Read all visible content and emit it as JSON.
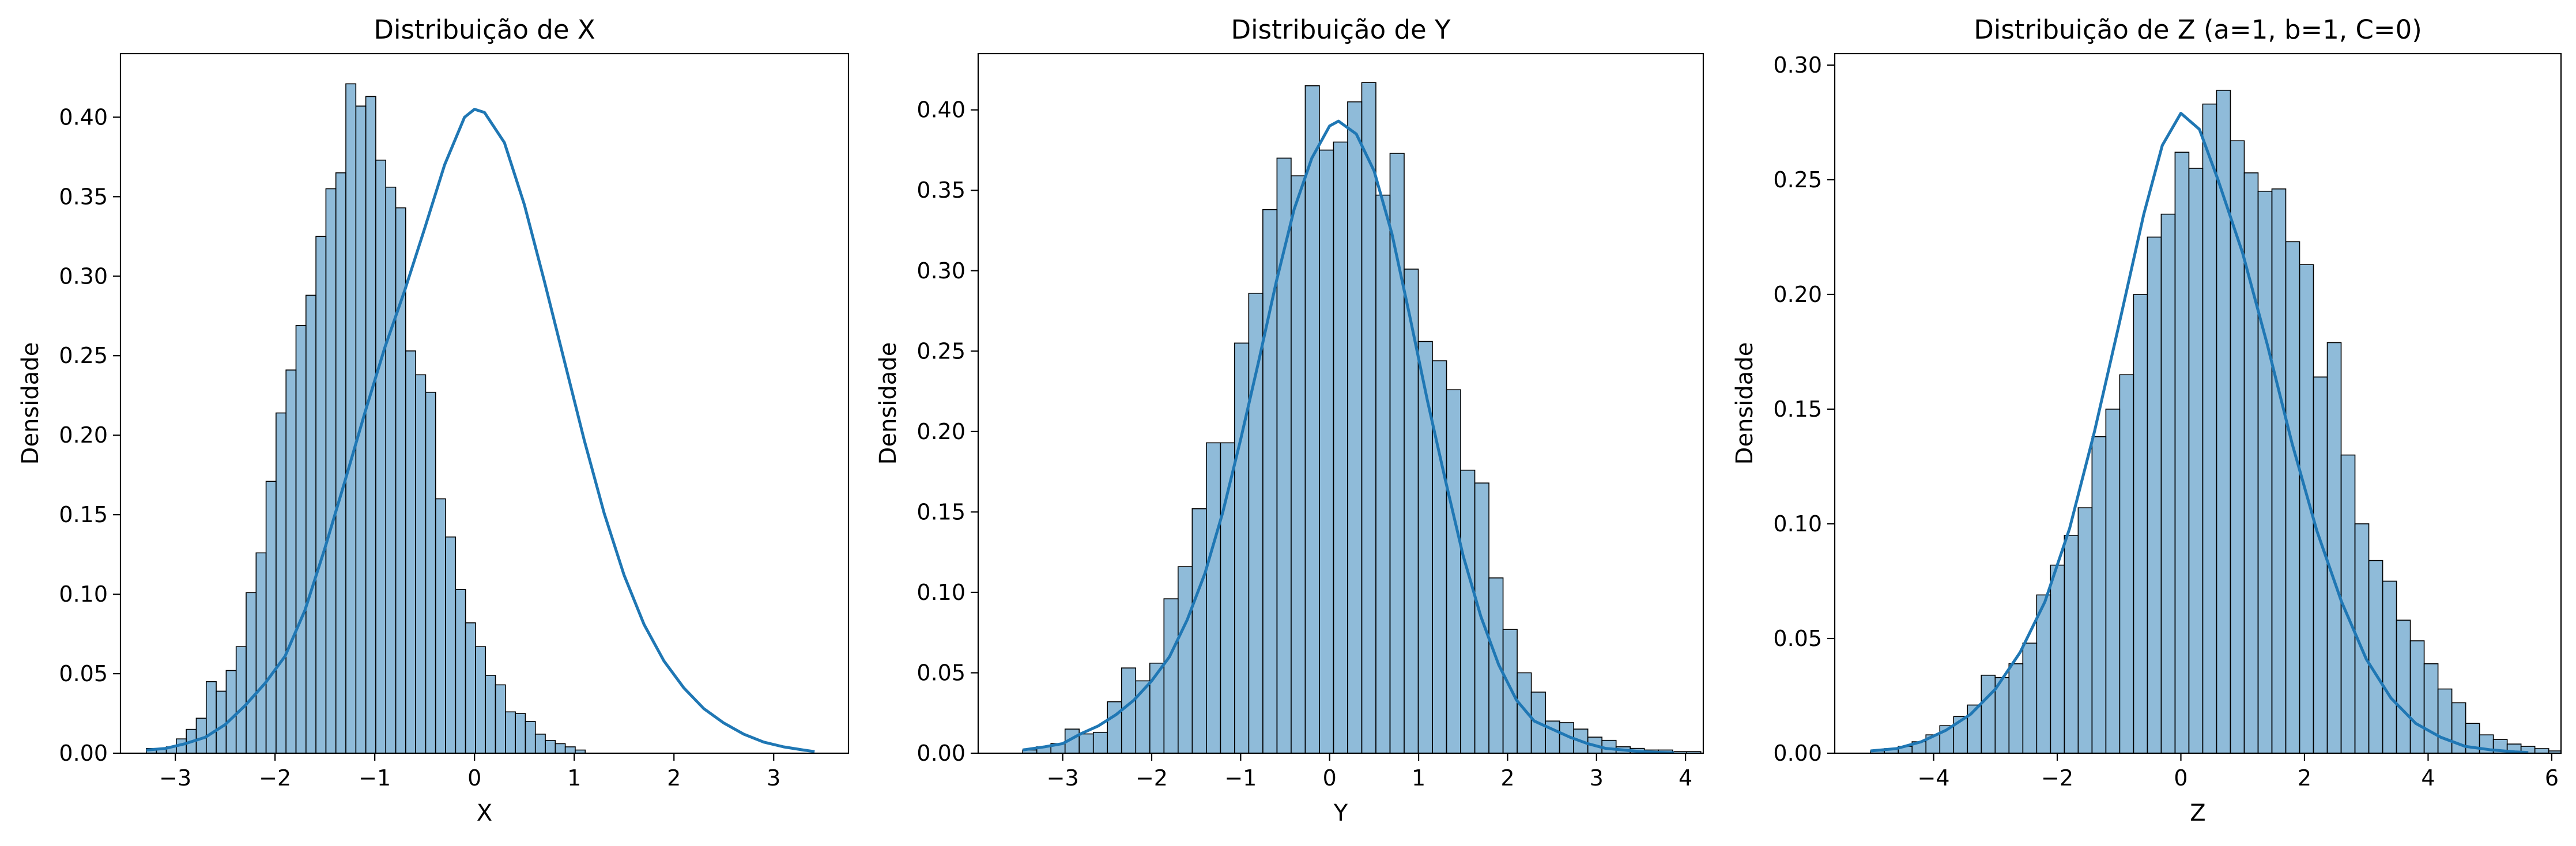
{
  "style": {
    "bar_fill": "#1f77b4",
    "bar_fill_opacity": 0.5,
    "bar_edge": "#000000",
    "kde_line": "#1f77b4",
    "background": "#ffffff"
  },
  "chart_data": [
    {
      "type": "bar",
      "subtype": "histogram-with-kde",
      "title": "Distribuição de X",
      "xlabel": "X",
      "ylabel": "Densidade",
      "xlim": [
        -3.55,
        3.75
      ],
      "ylim": [
        0,
        0.44
      ],
      "xticks": [
        -3,
        -2,
        -1,
        0,
        1,
        2,
        3
      ],
      "xtick_labels": [
        "−3",
        "−2",
        "−1",
        "0",
        "1",
        "2",
        "3"
      ],
      "yticks": [
        0,
        0.05,
        0.1,
        0.15,
        0.2,
        0.25,
        0.3,
        0.35,
        0.4
      ],
      "ytick_labels": [
        "0.00",
        "0.05",
        "0.10",
        "0.15",
        "0.20",
        "0.25",
        "0.30",
        "0.35",
        "0.40"
      ],
      "grid": false,
      "bin_start": -3.29,
      "bin_width": 0.1,
      "values": [
        0.003,
        0.003,
        0.004,
        0.009,
        0.015,
        0.022,
        0.045,
        0.039,
        0.052,
        0.067,
        0.101,
        0.126,
        0.171,
        0.214,
        0.241,
        0.269,
        0.288,
        0.325,
        0.355,
        0.365,
        0.421,
        0.407,
        0.413,
        0.373,
        0.356,
        0.343,
        0.253,
        0.238,
        0.227,
        0.16,
        0.136,
        0.103,
        0.082,
        0.067,
        0.049,
        0.043,
        0.026,
        0.025,
        0.02,
        0.012,
        0.008,
        0.006,
        0.004,
        0.002
      ],
      "kde": {
        "x": [
          -3.29,
          -3.1,
          -2.9,
          -2.7,
          -2.5,
          -2.3,
          -2.1,
          -1.9,
          -1.7,
          -1.5,
          -1.3,
          -1.1,
          -0.9,
          -0.7,
          -0.5,
          -0.3,
          -0.1,
          0.0,
          0.1,
          0.3,
          0.5,
          0.7,
          0.9,
          1.1,
          1.3,
          1.5,
          1.7,
          1.9,
          2.1,
          2.3,
          2.5,
          2.7,
          2.9,
          3.1,
          3.3,
          3.41
        ],
        "y": [
          0.002,
          0.003,
          0.006,
          0.01,
          0.018,
          0.03,
          0.044,
          0.061,
          0.09,
          0.129,
          0.171,
          0.214,
          0.255,
          0.291,
          0.33,
          0.37,
          0.4,
          0.405,
          0.403,
          0.384,
          0.345,
          0.297,
          0.247,
          0.197,
          0.151,
          0.112,
          0.081,
          0.058,
          0.041,
          0.028,
          0.019,
          0.012,
          0.007,
          0.004,
          0.002,
          0.001
        ]
      }
    },
    {
      "type": "bar",
      "subtype": "histogram-with-kde",
      "title": "Distribuição de Y",
      "xlabel": "Y",
      "ylabel": "Densidade",
      "xlim": [
        -3.95,
        4.2
      ],
      "ylim": [
        0,
        0.435
      ],
      "xticks": [
        -3,
        -2,
        -1,
        0,
        1,
        2,
        3,
        4
      ],
      "xtick_labels": [
        "−3",
        "−2",
        "−1",
        "0",
        "1",
        "2",
        "3",
        "4"
      ],
      "yticks": [
        0,
        0.05,
        0.1,
        0.15,
        0.2,
        0.25,
        0.3,
        0.35,
        0.4
      ],
      "ytick_labels": [
        "0.00",
        "0.05",
        "0.10",
        "0.15",
        "0.20",
        "0.25",
        "0.30",
        "0.35",
        "0.40"
      ],
      "grid": false,
      "bin_start": -3.45,
      "bin_width": 0.1588,
      "values": [
        0.002,
        0.004,
        0.006,
        0.015,
        0.012,
        0.013,
        0.032,
        0.053,
        0.045,
        0.056,
        0.096,
        0.116,
        0.152,
        0.193,
        0.193,
        0.255,
        0.286,
        0.338,
        0.37,
        0.359,
        0.415,
        0.375,
        0.38,
        0.405,
        0.417,
        0.347,
        0.373,
        0.301,
        0.256,
        0.244,
        0.226,
        0.176,
        0.168,
        0.109,
        0.077,
        0.05,
        0.038,
        0.02,
        0.019,
        0.015,
        0.01,
        0.008,
        0.004,
        0.003,
        0.002,
        0.002,
        0.001,
        0.001
      ],
      "kde": {
        "x": [
          -3.45,
          -3.2,
          -3.0,
          -2.8,
          -2.6,
          -2.4,
          -2.2,
          -2.0,
          -1.8,
          -1.6,
          -1.4,
          -1.2,
          -1.0,
          -0.8,
          -0.6,
          -0.4,
          -0.2,
          0.0,
          0.1,
          0.3,
          0.5,
          0.7,
          0.9,
          1.1,
          1.3,
          1.5,
          1.7,
          1.9,
          2.1,
          2.3,
          2.5,
          2.7,
          2.9,
          3.1,
          3.3,
          3.5,
          3.7,
          3.87
        ],
        "y": [
          0.002,
          0.004,
          0.006,
          0.012,
          0.017,
          0.024,
          0.033,
          0.045,
          0.06,
          0.083,
          0.112,
          0.15,
          0.195,
          0.243,
          0.293,
          0.338,
          0.37,
          0.39,
          0.393,
          0.385,
          0.362,
          0.323,
          0.272,
          0.219,
          0.17,
          0.123,
          0.085,
          0.055,
          0.033,
          0.02,
          0.015,
          0.01,
          0.006,
          0.003,
          0.002,
          0.001,
          0.0005,
          0.0002
        ]
      }
    },
    {
      "type": "bar",
      "subtype": "histogram-with-kde",
      "title": "Distribuição de Z (a=1, b=1, C=0)",
      "xlabel": "Z",
      "ylabel": "Densidade",
      "xlim": [
        -5.6,
        6.15
      ],
      "ylim": [
        0,
        0.305
      ],
      "xticks": [
        -4,
        -2,
        0,
        2,
        4,
        6
      ],
      "xtick_labels": [
        "−4",
        "−2",
        "0",
        "2",
        "4",
        "6"
      ],
      "yticks": [
        0,
        0.05,
        0.1,
        0.15,
        0.2,
        0.25,
        0.3
      ],
      "ytick_labels": [
        "0.00",
        "0.05",
        "0.10",
        "0.15",
        "0.20",
        "0.25",
        "0.30"
      ],
      "grid": false,
      "bin_start": -5.02,
      "bin_width": 0.2239,
      "values": [
        0.001,
        0.002,
        0.003,
        0.005,
        0.008,
        0.012,
        0.016,
        0.021,
        0.034,
        0.033,
        0.039,
        0.048,
        0.069,
        0.082,
        0.095,
        0.107,
        0.138,
        0.15,
        0.165,
        0.2,
        0.225,
        0.235,
        0.262,
        0.255,
        0.283,
        0.289,
        0.267,
        0.253,
        0.245,
        0.246,
        0.223,
        0.213,
        0.164,
        0.179,
        0.13,
        0.1,
        0.084,
        0.075,
        0.058,
        0.049,
        0.039,
        0.028,
        0.022,
        0.013,
        0.008,
        0.006,
        0.004,
        0.003,
        0.002,
        0.001,
        0.001,
        0.001
      ],
      "kde": {
        "x": [
          -5.02,
          -4.6,
          -4.2,
          -3.8,
          -3.4,
          -3.0,
          -2.6,
          -2.2,
          -1.8,
          -1.4,
          -1.0,
          -0.6,
          -0.3,
          0.0,
          0.3,
          0.6,
          1.0,
          1.4,
          1.8,
          2.2,
          2.6,
          3.0,
          3.4,
          3.8,
          4.2,
          4.6,
          5.0,
          5.4,
          5.62
        ],
        "y": [
          0.001,
          0.002,
          0.005,
          0.01,
          0.017,
          0.028,
          0.044,
          0.066,
          0.098,
          0.14,
          0.187,
          0.235,
          0.265,
          0.279,
          0.272,
          0.25,
          0.218,
          0.178,
          0.135,
          0.097,
          0.066,
          0.041,
          0.024,
          0.013,
          0.007,
          0.003,
          0.0015,
          0.0006,
          0.0003
        ]
      }
    }
  ]
}
